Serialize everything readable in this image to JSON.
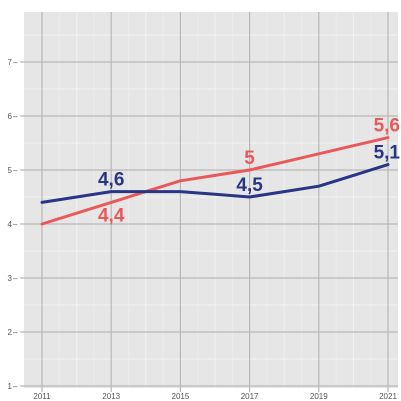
{
  "chart_data": {
    "type": "line",
    "x": [
      2011,
      2012,
      2013,
      2014,
      2015,
      2016,
      2017,
      2018,
      2019,
      2020,
      2021
    ],
    "xticks": [
      "2011",
      "2013",
      "2015",
      "2017",
      "2019",
      "2021"
    ],
    "yticks": [
      "1",
      "2",
      "3",
      "4",
      "5",
      "6",
      "7"
    ],
    "xlim": [
      2011,
      2021
    ],
    "ylim": [
      1,
      7
    ],
    "grid": true,
    "series": [
      {
        "color": "#e85a5a",
        "values": [
          4.0,
          4.2,
          4.4,
          4.6,
          4.8,
          4.9,
          5.0,
          5.15,
          5.3,
          5.45,
          5.6
        ],
        "labels": [
          {
            "x": 2013,
            "y": 4.4,
            "text": "4,4",
            "placement": "below"
          },
          {
            "x": 2017,
            "y": 5.0,
            "text": "5",
            "placement": "above"
          },
          {
            "x": 2021,
            "y": 5.6,
            "text": "5,6",
            "placement": "above"
          }
        ]
      },
      {
        "color": "#2a3585",
        "values": [
          4.4,
          4.5,
          4.6,
          4.6,
          4.6,
          4.55,
          4.5,
          4.6,
          4.7,
          4.9,
          5.1
        ],
        "labels": [
          {
            "x": 2013,
            "y": 4.6,
            "text": "4,6",
            "placement": "above"
          },
          {
            "x": 2017,
            "y": 4.5,
            "text": "4,5",
            "placement": "above"
          },
          {
            "x": 2021,
            "y": 5.1,
            "text": "5,1",
            "placement": "above"
          }
        ]
      }
    ]
  }
}
